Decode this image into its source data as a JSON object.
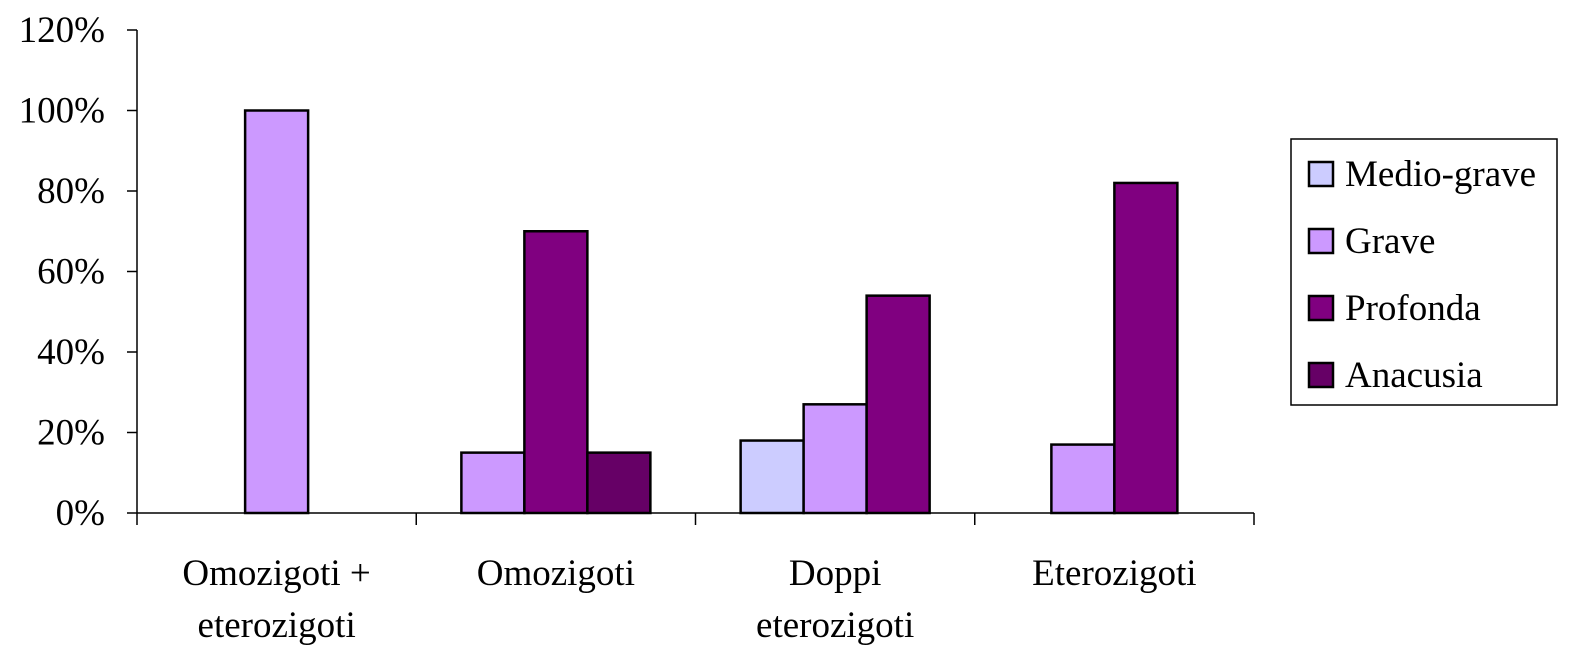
{
  "chart_data": {
    "type": "bar",
    "categories": [
      [
        "Omozigoti +",
        "eterozigoti"
      ],
      [
        "Omozigoti"
      ],
      [
        "Doppi",
        "eterozigoti"
      ],
      [
        "Eterozigoti"
      ]
    ],
    "series": [
      {
        "name": "Medio-grave",
        "color": "#ccccff",
        "values": [
          0,
          0,
          18,
          0
        ]
      },
      {
        "name": "Grave",
        "color": "#cc99ff",
        "values": [
          100,
          15,
          27,
          17
        ]
      },
      {
        "name": "Profonda",
        "color": "#800080",
        "values": [
          0,
          70,
          54,
          82
        ]
      },
      {
        "name": "Anacusia",
        "color": "#660066",
        "values": [
          0,
          15,
          0,
          0
        ]
      }
    ],
    "yticks": [
      "0%",
      "20%",
      "40%",
      "60%",
      "80%",
      "100%",
      "120%"
    ],
    "ylim": [
      0,
      120
    ],
    "grid": false,
    "legend_position": "right"
  }
}
